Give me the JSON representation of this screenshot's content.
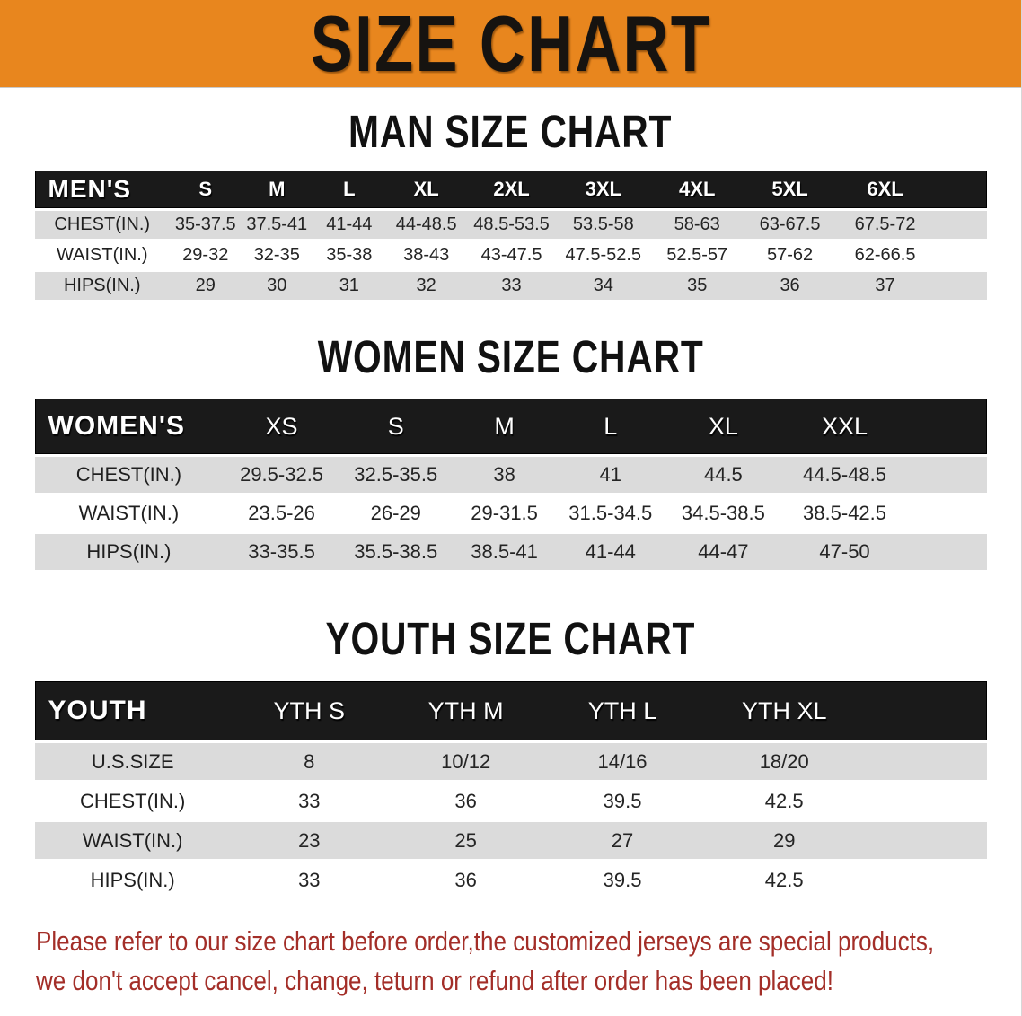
{
  "banner": {
    "title": "SIZE CHART"
  },
  "colors": {
    "banner_bg": "#e8861e",
    "header_bar": "#1a1a1a",
    "row_gray": "#dbdbdb",
    "row_white": "#ffffff",
    "note_red": "#a32e28"
  },
  "sections": [
    {
      "heading": "MAN SIZE CHART",
      "table": {
        "header_label": "MEN'S",
        "columns": [
          "S",
          "M",
          "L",
          "XL",
          "2XL",
          "3XL",
          "4XL",
          "5XL",
          "6XL"
        ],
        "col_widths_pct": [
          14.2,
          7.5,
          7.5,
          7.7,
          8.5,
          9.4,
          9.9,
          9.8,
          9.7,
          10.3,
          5.5
        ],
        "rows": [
          {
            "label": "CHEST(IN.)",
            "values": [
              "35-37.5",
              "37.5-41",
              "41-44",
              "44-48.5",
              "48.5-53.5",
              "53.5-58",
              "58-63",
              "63-67.5",
              "67.5-72"
            ]
          },
          {
            "label": "WAIST(IN.)",
            "values": [
              "29-32",
              "32-35",
              "35-38",
              "38-43",
              "43-47.5",
              "47.5-52.5",
              "52.5-57",
              "57-62",
              "62-66.5"
            ]
          },
          {
            "label": "HIPS(IN.)",
            "values": [
              "29",
              "30",
              "31",
              "32",
              "33",
              "34",
              "35",
              "36",
              "37"
            ]
          }
        ]
      }
    },
    {
      "heading": "WOMEN SIZE CHART",
      "table": {
        "header_label": "WOMEN'S",
        "columns": [
          "XS",
          "S",
          "M",
          "L",
          "XL",
          "XXL"
        ],
        "col_widths_pct": [
          19.8,
          12.3,
          11.7,
          11.1,
          11.2,
          12.5,
          13.0,
          8.4
        ],
        "rows": [
          {
            "label": "CHEST(IN.)",
            "values": [
              "29.5-32.5",
              "32.5-35.5",
              "38",
              "41",
              "44.5",
              "44.5-48.5"
            ]
          },
          {
            "label": "WAIST(IN.)",
            "values": [
              "23.5-26",
              "26-29",
              "29-31.5",
              "31.5-34.5",
              "34.5-38.5",
              "38.5-42.5"
            ]
          },
          {
            "label": "HIPS(IN.)",
            "values": [
              "33-35.5",
              "35.5-38.5",
              "38.5-41",
              "41-44",
              "44-47",
              "47-50"
            ]
          }
        ]
      }
    },
    {
      "heading": "YOUTH SIZE CHART",
      "table": {
        "header_label": "YOUTH",
        "columns": [
          "YTH S",
          "YTH M",
          "YTH L",
          "YTH XL"
        ],
        "col_widths_pct": [
          20.6,
          16.5,
          16.4,
          16.5,
          17.5,
          12.5
        ],
        "rows": [
          {
            "label": "U.S.SIZE",
            "values": [
              "8",
              "10/12",
              "14/16",
              "18/20"
            ]
          },
          {
            "label": "CHEST(IN.)",
            "values": [
              "33",
              "36",
              "39.5",
              "42.5"
            ]
          },
          {
            "label": "WAIST(IN.)",
            "values": [
              "23",
              "25",
              "27",
              "29"
            ]
          },
          {
            "label": "HIPS(IN.)",
            "values": [
              "33",
              "36",
              "39.5",
              "42.5"
            ]
          }
        ]
      }
    }
  ],
  "footer": {
    "line1": "Please refer to our size chart before order,the customized jerseys are special products,",
    "line2": "we don't accept cancel, change, teturn or refund after order has been placed!"
  }
}
